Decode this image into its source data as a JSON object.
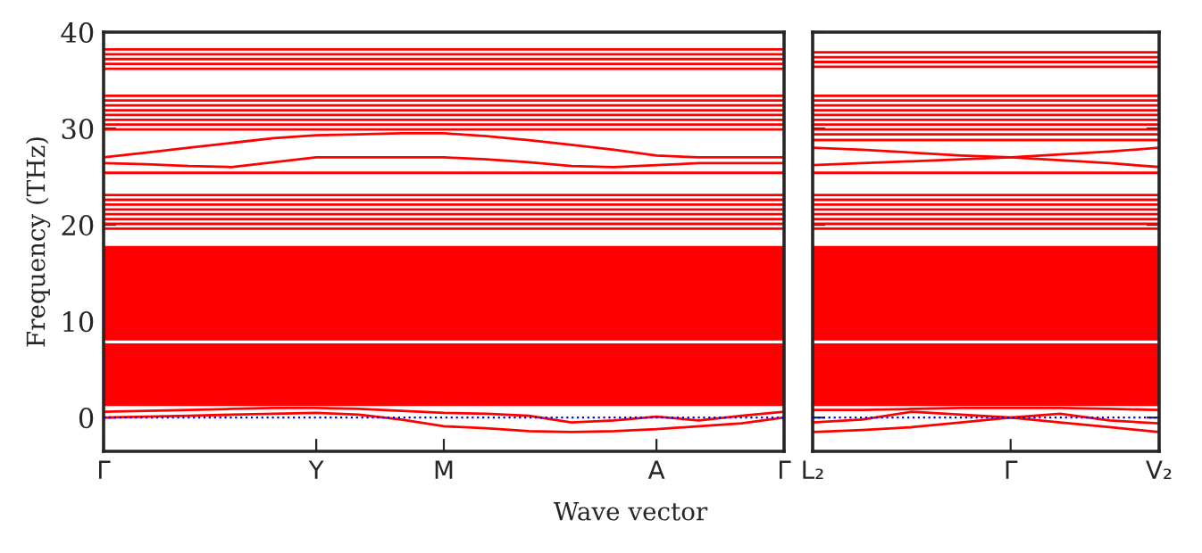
{
  "chart_data": [
    {
      "type": "line",
      "ylabel": "Frequency (THz)",
      "xlabel": "Wave vector",
      "categories": [
        "Γ",
        null,
        null,
        null,
        null,
        "Y",
        null,
        null,
        "M",
        null,
        null,
        null,
        null,
        "A",
        null,
        null,
        "Γ"
      ],
      "ylim": [
        -3.5,
        40
      ],
      "yticks": [
        0,
        10,
        20,
        30,
        40
      ],
      "grid": false,
      "legend": false,
      "marker": "none",
      "line_style": "solid",
      "ref_lines": [
        {
          "axis": "y",
          "value": 0,
          "color": "#0000ff",
          "line_style": "dotted"
        }
      ],
      "bands": [
        {
          "axis": "y",
          "from": 1.2,
          "to": 7.7,
          "color": "#ff0000"
        },
        {
          "axis": "y",
          "from": 8.0,
          "to": 17.8,
          "color": "#ff0000"
        }
      ],
      "series": [
        {
          "color": "#ff0000",
          "values": [
            0,
            0.1,
            0.2,
            0.3,
            0.4,
            0.5,
            0.3,
            -0.2,
            -0.9,
            -1.1,
            -1.4,
            -1.5,
            -1.4,
            -1.2,
            -0.9,
            -0.6,
            0
          ]
        },
        {
          "color": "#ff0000",
          "values": [
            0.6,
            0.7,
            0.8,
            0.9,
            1.0,
            1.0,
            0.9,
            0.7,
            0.5,
            0.4,
            0.2,
            -0.5,
            -0.3,
            0.1,
            -0.3,
            0.2,
            0.6
          ]
        },
        {
          "color": "#ff0000",
          "values": [
            19.6,
            19.6,
            19.6,
            19.6,
            19.6,
            19.6,
            19.6,
            19.6,
            19.6,
            19.6,
            19.6,
            19.6,
            19.6,
            19.6,
            19.6,
            19.6,
            19.6
          ]
        },
        {
          "color": "#ff0000",
          "values": [
            20.1,
            20.1,
            20.1,
            20.1,
            20.1,
            20.1,
            20.1,
            20.1,
            20.1,
            20.1,
            20.1,
            20.1,
            20.1,
            20.1,
            20.1,
            20.1,
            20.1
          ]
        },
        {
          "color": "#ff0000",
          "values": [
            20.6,
            20.6,
            20.6,
            20.6,
            20.6,
            20.6,
            20.6,
            20.6,
            20.6,
            20.6,
            20.6,
            20.6,
            20.6,
            20.6,
            20.6,
            20.6,
            20.6
          ]
        },
        {
          "color": "#ff0000",
          "values": [
            21.1,
            21.1,
            21.1,
            21.1,
            21.1,
            21.1,
            21.1,
            21.1,
            21.1,
            21.1,
            21.1,
            21.1,
            21.1,
            21.1,
            21.1,
            21.1,
            21.1
          ]
        },
        {
          "color": "#ff0000",
          "values": [
            21.6,
            21.6,
            21.6,
            21.6,
            21.6,
            21.6,
            21.6,
            21.6,
            21.6,
            21.6,
            21.6,
            21.6,
            21.6,
            21.6,
            21.6,
            21.6,
            21.6
          ]
        },
        {
          "color": "#ff0000",
          "values": [
            22.1,
            22.1,
            22.1,
            22.1,
            22.1,
            22.1,
            22.1,
            22.1,
            22.1,
            22.1,
            22.1,
            22.1,
            22.1,
            22.1,
            22.1,
            22.1,
            22.1
          ]
        },
        {
          "color": "#ff0000",
          "values": [
            22.6,
            22.6,
            22.6,
            22.6,
            22.6,
            22.6,
            22.6,
            22.6,
            22.6,
            22.6,
            22.6,
            22.6,
            22.6,
            22.6,
            22.6,
            22.6,
            22.6
          ]
        },
        {
          "color": "#ff0000",
          "values": [
            23.1,
            23.1,
            23.1,
            23.1,
            23.1,
            23.1,
            23.1,
            23.1,
            23.1,
            23.1,
            23.1,
            23.1,
            23.1,
            23.1,
            23.1,
            23.1,
            23.1
          ]
        },
        {
          "color": "#ff0000",
          "values": [
            25.4,
            25.4,
            25.4,
            25.4,
            25.4,
            25.4,
            25.4,
            25.4,
            25.4,
            25.4,
            25.4,
            25.4,
            25.4,
            25.4,
            25.4,
            25.4,
            25.4
          ]
        },
        {
          "color": "#ff0000",
          "values": [
            27.0,
            27.5,
            28.0,
            28.5,
            29.0,
            29.3,
            29.4,
            29.5,
            29.5,
            29.2,
            28.8,
            28.3,
            27.8,
            27.2,
            27.0,
            27.0,
            27.0
          ]
        },
        {
          "color": "#ff0000",
          "values": [
            26.4,
            26.3,
            26.1,
            26.0,
            26.5,
            27.0,
            27.0,
            27.0,
            27.0,
            26.8,
            26.5,
            26.1,
            26.0,
            26.2,
            26.4,
            26.4,
            26.4
          ]
        },
        {
          "color": "#ff0000",
          "values": [
            29.9,
            29.9,
            29.9,
            29.9,
            29.9,
            29.9,
            29.9,
            29.9,
            29.9,
            29.9,
            29.9,
            29.9,
            29.9,
            29.9,
            29.9,
            29.9,
            29.9
          ]
        },
        {
          "color": "#ff0000",
          "values": [
            30.4,
            30.4,
            30.4,
            30.4,
            30.4,
            30.4,
            30.4,
            30.4,
            30.4,
            30.4,
            30.4,
            30.4,
            30.4,
            30.4,
            30.4,
            30.4,
            30.4
          ]
        },
        {
          "color": "#ff0000",
          "values": [
            30.9,
            30.9,
            30.9,
            30.9,
            30.9,
            30.9,
            30.9,
            30.9,
            30.9,
            30.9,
            30.9,
            30.9,
            30.9,
            30.9,
            30.9,
            30.9,
            30.9
          ]
        },
        {
          "color": "#ff0000",
          "values": [
            31.4,
            31.4,
            31.4,
            31.4,
            31.4,
            31.4,
            31.4,
            31.4,
            31.4,
            31.4,
            31.4,
            31.4,
            31.4,
            31.4,
            31.4,
            31.4,
            31.4
          ]
        },
        {
          "color": "#ff0000",
          "values": [
            31.9,
            31.9,
            31.9,
            31.9,
            31.9,
            31.9,
            31.9,
            31.9,
            31.9,
            31.9,
            31.9,
            31.9,
            31.9,
            31.9,
            31.9,
            31.9,
            31.9
          ]
        },
        {
          "color": "#ff0000",
          "values": [
            32.4,
            32.4,
            32.4,
            32.4,
            32.4,
            32.4,
            32.4,
            32.4,
            32.4,
            32.4,
            32.4,
            32.4,
            32.4,
            32.4,
            32.4,
            32.4,
            32.4
          ]
        },
        {
          "color": "#ff0000",
          "values": [
            32.9,
            32.9,
            32.9,
            32.9,
            32.9,
            32.9,
            32.9,
            32.9,
            32.9,
            32.9,
            32.9,
            32.9,
            32.9,
            32.9,
            32.9,
            32.9,
            32.9
          ]
        },
        {
          "color": "#ff0000",
          "values": [
            33.4,
            33.4,
            33.4,
            33.4,
            33.4,
            33.4,
            33.4,
            33.4,
            33.4,
            33.4,
            33.4,
            33.4,
            33.4,
            33.4,
            33.4,
            33.4,
            33.4
          ]
        },
        {
          "color": "#ff0000",
          "values": [
            36.2,
            36.2,
            36.2,
            36.2,
            36.2,
            36.2,
            36.2,
            36.2,
            36.2,
            36.2,
            36.2,
            36.2,
            36.2,
            36.2,
            36.2,
            36.2,
            36.2
          ]
        },
        {
          "color": "#ff0000",
          "values": [
            36.7,
            36.7,
            36.7,
            36.7,
            36.7,
            36.7,
            36.7,
            36.7,
            36.7,
            36.7,
            36.7,
            36.7,
            36.7,
            36.7,
            36.7,
            36.7,
            36.7
          ]
        },
        {
          "color": "#ff0000",
          "values": [
            37.2,
            37.2,
            37.2,
            37.2,
            37.2,
            37.2,
            37.2,
            37.2,
            37.2,
            37.2,
            37.2,
            37.2,
            37.2,
            37.2,
            37.2,
            37.2,
            37.2
          ]
        },
        {
          "color": "#ff0000",
          "values": [
            37.7,
            37.7,
            37.7,
            37.7,
            37.7,
            37.7,
            37.7,
            37.7,
            37.7,
            37.7,
            37.7,
            37.7,
            37.7,
            37.7,
            37.7,
            37.7,
            37.7
          ]
        },
        {
          "color": "#ff0000",
          "values": [
            38.2,
            38.2,
            38.2,
            38.2,
            38.2,
            38.2,
            38.2,
            38.2,
            38.2,
            38.2,
            38.2,
            38.2,
            38.2,
            38.2,
            38.2,
            38.2,
            38.2
          ]
        }
      ]
    },
    {
      "type": "line",
      "categories": [
        "L₂",
        null,
        null,
        null,
        "Γ",
        null,
        null,
        "V₂"
      ],
      "ylim": [
        -3.5,
        40
      ],
      "yticks": [
        0,
        10,
        20,
        30,
        40
      ],
      "tick_labels": "x",
      "grid": false,
      "legend": false,
      "marker": "none",
      "line_style": "solid",
      "ref_lines": [
        {
          "axis": "y",
          "value": 0,
          "color": "#0000ff",
          "line_style": "dotted"
        }
      ],
      "bands": [
        {
          "axis": "y",
          "from": 1.2,
          "to": 7.7,
          "color": "#ff0000"
        },
        {
          "axis": "y",
          "from": 8.0,
          "to": 17.8,
          "color": "#ff0000"
        }
      ],
      "series": [
        {
          "color": "#ff0000",
          "values": [
            -1.5,
            -1.3,
            -1.0,
            -0.5,
            0,
            -0.5,
            -1.0,
            -1.5
          ]
        },
        {
          "color": "#ff0000",
          "values": [
            -0.5,
            -0.2,
            0.6,
            0.3,
            0,
            0.4,
            -0.3,
            -0.6
          ]
        },
        {
          "color": "#ff0000",
          "values": [
            0.8,
            0.8,
            0.9,
            1.0,
            1.0,
            1.0,
            0.9,
            0.8
          ]
        },
        {
          "color": "#ff0000",
          "values": [
            19.6,
            19.6,
            19.6,
            19.6,
            19.6,
            19.6,
            19.6,
            19.6
          ]
        },
        {
          "color": "#ff0000",
          "values": [
            20.1,
            20.1,
            20.1,
            20.1,
            20.1,
            20.1,
            20.1,
            20.1
          ]
        },
        {
          "color": "#ff0000",
          "values": [
            20.6,
            20.6,
            20.6,
            20.6,
            20.6,
            20.6,
            20.6,
            20.6
          ]
        },
        {
          "color": "#ff0000",
          "values": [
            21.1,
            21.1,
            21.1,
            21.1,
            21.1,
            21.1,
            21.1,
            21.1
          ]
        },
        {
          "color": "#ff0000",
          "values": [
            21.6,
            21.6,
            21.6,
            21.6,
            21.6,
            21.6,
            21.6,
            21.6
          ]
        },
        {
          "color": "#ff0000",
          "values": [
            22.1,
            22.1,
            22.1,
            22.1,
            22.1,
            22.1,
            22.1,
            22.1
          ]
        },
        {
          "color": "#ff0000",
          "values": [
            22.6,
            22.6,
            22.6,
            22.6,
            22.6,
            22.6,
            22.6,
            22.6
          ]
        },
        {
          "color": "#ff0000",
          "values": [
            23.1,
            23.1,
            23.1,
            23.1,
            23.1,
            23.1,
            23.1,
            23.1
          ]
        },
        {
          "color": "#ff0000",
          "values": [
            25.4,
            25.4,
            25.4,
            25.4,
            25.4,
            25.4,
            25.4,
            25.4
          ]
        },
        {
          "color": "#ff0000",
          "values": [
            28.0,
            27.8,
            27.5,
            27.2,
            27.0,
            26.7,
            26.4,
            26.0
          ]
        },
        {
          "color": "#ff0000",
          "values": [
            26.2,
            26.4,
            26.6,
            26.8,
            27.0,
            27.3,
            27.6,
            28.0
          ]
        },
        {
          "color": "#ff0000",
          "values": [
            28.8,
            28.8,
            28.8,
            28.8,
            28.8,
            28.8,
            28.8,
            28.8
          ]
        },
        {
          "color": "#ff0000",
          "values": [
            29.4,
            29.4,
            29.4,
            29.4,
            29.4,
            29.4,
            29.4,
            29.4
          ]
        },
        {
          "color": "#ff0000",
          "values": [
            29.9,
            29.9,
            29.9,
            29.9,
            29.9,
            29.9,
            29.9,
            29.9
          ]
        },
        {
          "color": "#ff0000",
          "values": [
            30.4,
            30.4,
            30.4,
            30.4,
            30.4,
            30.4,
            30.4,
            30.4
          ]
        },
        {
          "color": "#ff0000",
          "values": [
            30.9,
            30.9,
            30.9,
            30.9,
            30.9,
            30.9,
            30.9,
            30.9
          ]
        },
        {
          "color": "#ff0000",
          "values": [
            31.4,
            31.4,
            31.4,
            31.4,
            31.4,
            31.4,
            31.4,
            31.4
          ]
        },
        {
          "color": "#ff0000",
          "values": [
            31.9,
            31.9,
            31.9,
            31.9,
            31.9,
            31.9,
            31.9,
            31.9
          ]
        },
        {
          "color": "#ff0000",
          "values": [
            32.4,
            32.4,
            32.4,
            32.4,
            32.4,
            32.4,
            32.4,
            32.4
          ]
        },
        {
          "color": "#ff0000",
          "values": [
            32.9,
            32.9,
            32.9,
            32.9,
            32.9,
            32.9,
            32.9,
            32.9
          ]
        },
        {
          "color": "#ff0000",
          "values": [
            33.4,
            33.4,
            33.4,
            33.4,
            33.4,
            33.4,
            33.4,
            33.4
          ]
        },
        {
          "color": "#ff0000",
          "values": [
            36.4,
            36.4,
            36.4,
            36.4,
            36.4,
            36.4,
            36.4,
            36.4
          ]
        },
        {
          "color": "#ff0000",
          "values": [
            36.9,
            36.9,
            36.9,
            36.9,
            36.9,
            36.9,
            36.9,
            36.9
          ]
        },
        {
          "color": "#ff0000",
          "values": [
            37.4,
            37.4,
            37.4,
            37.4,
            37.4,
            37.4,
            37.4,
            37.4
          ]
        },
        {
          "color": "#ff0000",
          "values": [
            37.9,
            37.9,
            37.9,
            37.9,
            37.9,
            37.9,
            37.9,
            37.9
          ]
        }
      ]
    }
  ]
}
